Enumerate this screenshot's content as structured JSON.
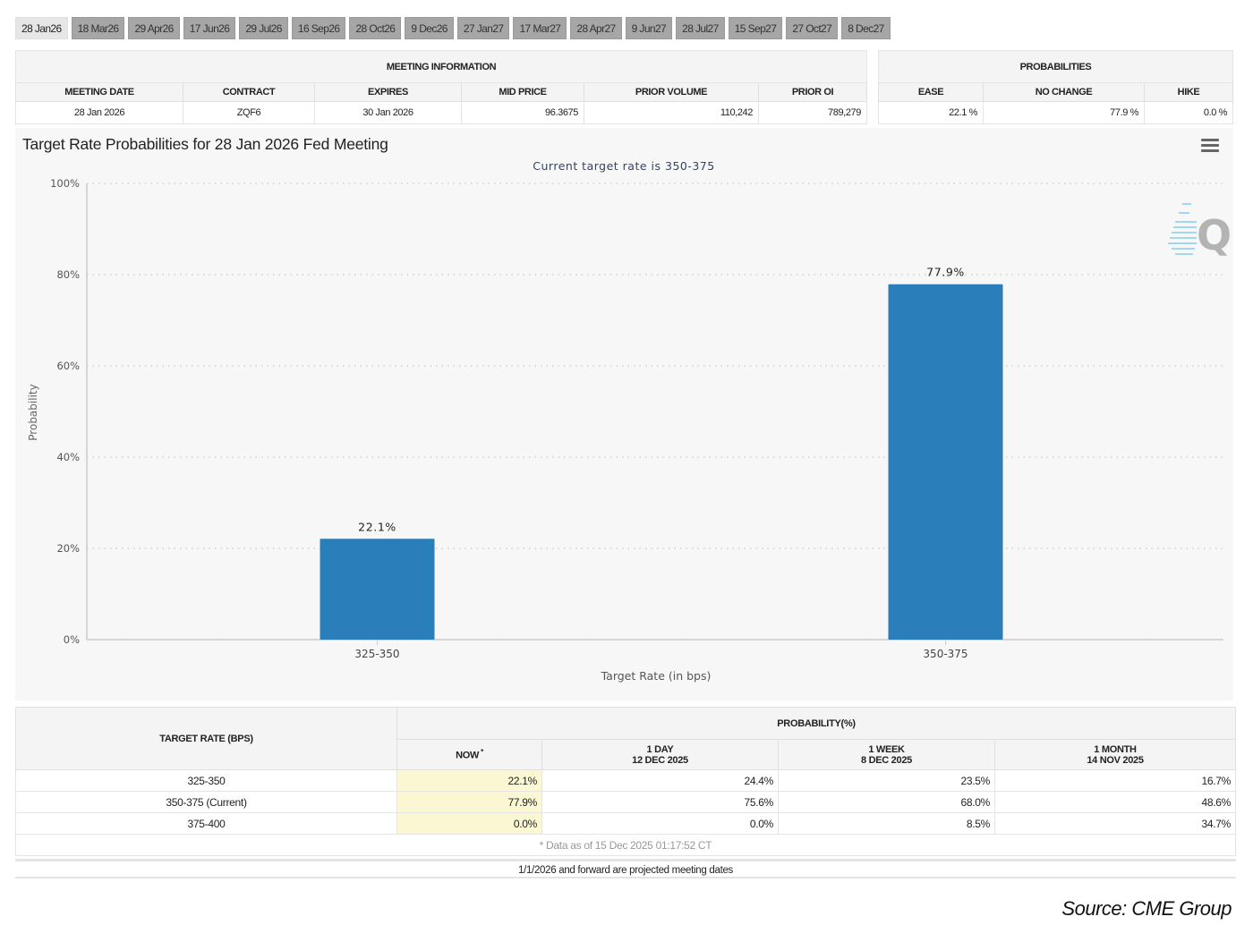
{
  "tabs": [
    {
      "label": "28 Jan26",
      "active": true
    },
    {
      "label": "18 Mar26"
    },
    {
      "label": "29 Apr26"
    },
    {
      "label": "17 Jun26"
    },
    {
      "label": "29 Jul26"
    },
    {
      "label": "16 Sep26"
    },
    {
      "label": "28 Oct26"
    },
    {
      "label": "9 Dec26"
    },
    {
      "label": "27 Jan27"
    },
    {
      "label": "17 Mar27"
    },
    {
      "label": "28 Apr27"
    },
    {
      "label": "9 Jun27"
    },
    {
      "label": "28 Jul27"
    },
    {
      "label": "15 Sep27"
    },
    {
      "label": "27 Oct27"
    },
    {
      "label": "8 Dec27"
    }
  ],
  "meeting_info": {
    "group_label": "MEETING INFORMATION",
    "headers": [
      "MEETING DATE",
      "CONTRACT",
      "EXPIRES",
      "MID PRICE",
      "PRIOR VOLUME",
      "PRIOR OI"
    ],
    "values": [
      "28 Jan 2026",
      "ZQF6",
      "30 Jan 2026",
      "96.3675",
      "110,242",
      "789,279"
    ]
  },
  "probabilities": {
    "group_label": "PROBABILITIES",
    "headers": [
      "EASE",
      "NO CHANGE",
      "HIKE"
    ],
    "values": [
      "22.1 %",
      "77.9 %",
      "0.0 %"
    ]
  },
  "chart": {
    "title": "Target Rate Probabilities for 28 Jan 2026 Fed Meeting",
    "menu_icon": "hamburger-menu-icon",
    "watermark": "Q"
  },
  "chart_data": {
    "type": "bar",
    "title": "Target Rate Probabilities for 28 Jan 2026 Fed Meeting",
    "subtitle": "Current target rate is 350-375",
    "categories": [
      "325-350",
      "350-375"
    ],
    "values": [
      22.1,
      77.9
    ],
    "data_labels": [
      "22.1%",
      "77.9%"
    ],
    "xlabel": "Target Rate (in bps)",
    "ylabel": "Probability",
    "ylim": [
      0,
      100
    ],
    "yticks": [
      0,
      20,
      40,
      60,
      80,
      100
    ],
    "ytick_labels": [
      "0%",
      "20%",
      "40%",
      "60%",
      "80%",
      "100%"
    ],
    "grid": true,
    "bar_color": "#2a7fba"
  },
  "rate_table": {
    "rate_header": "TARGET RATE (BPS)",
    "group_label": "PROBABILITY(%)",
    "columns": [
      {
        "line1": "NOW",
        "line2": "",
        "star": "*"
      },
      {
        "line1": "1 DAY",
        "line2": "12 DEC 2025"
      },
      {
        "line1": "1 WEEK",
        "line2": "8 DEC 2025"
      },
      {
        "line1": "1 MONTH",
        "line2": "14 NOV 2025"
      }
    ],
    "rows": [
      {
        "rate": "325-350",
        "values": [
          "22.1%",
          "24.4%",
          "23.5%",
          "16.7%"
        ]
      },
      {
        "rate": "350-375 (Current)",
        "values": [
          "77.9%",
          "75.6%",
          "68.0%",
          "48.6%"
        ]
      },
      {
        "rate": "375-400",
        "values": [
          "0.0%",
          "0.0%",
          "8.5%",
          "34.7%"
        ]
      }
    ],
    "footnote": "* Data as of 15 Dec 2025 01:17:52 CT"
  },
  "note": "1/1/2026 and forward are projected meeting dates",
  "source": "Source: CME Group"
}
